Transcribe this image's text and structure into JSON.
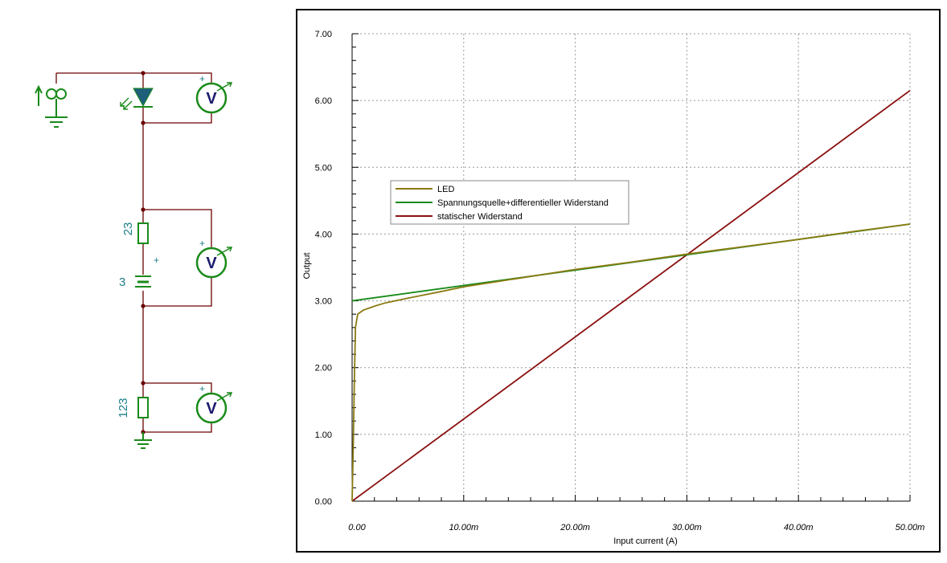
{
  "schematic": {
    "resistor1_value": "23",
    "battery_value": "3",
    "resistor2_value": "123",
    "battery_polarity": "+",
    "voltmeter_letter": "V",
    "voltmeter_polarity": "+",
    "colors": {
      "wire": "#6b0000",
      "component": "#1a8a1a",
      "led": "#1e5f7a",
      "label": "#1e7f8a"
    }
  },
  "chart_data": {
    "type": "line",
    "xlabel": "Input current (A)",
    "ylabel": "Output",
    "xlim": [
      0,
      0.05
    ],
    "ylim": [
      0,
      7
    ],
    "x_ticks": [
      "0.00",
      "10.00m",
      "20.00m",
      "30.00m",
      "40.00m",
      "50.00m"
    ],
    "y_ticks": [
      "0.00",
      "1.00",
      "2.00",
      "3.00",
      "4.00",
      "5.00",
      "6.00",
      "7.00"
    ],
    "grid": true,
    "legend_position": "upper-left",
    "series": [
      {
        "name": "LED",
        "color": "#8a7a10",
        "x": [
          0,
          0.0001,
          0.0002,
          0.0003,
          0.0005,
          0.001,
          0.002,
          0.003,
          0.005,
          0.008,
          0.01,
          0.015,
          0.02,
          0.025,
          0.03,
          0.035,
          0.04,
          0.045,
          0.05
        ],
        "y": [
          0,
          0.8,
          1.8,
          2.6,
          2.8,
          2.86,
          2.92,
          2.97,
          3.04,
          3.14,
          3.21,
          3.34,
          3.47,
          3.58,
          3.7,
          3.81,
          3.92,
          4.04,
          4.15
        ]
      },
      {
        "name": "Spannungsquelle+differentieller Widerstand",
        "color": "#1a8a1a",
        "x": [
          0,
          0.05
        ],
        "y": [
          3.0,
          4.15
        ]
      },
      {
        "name": "statischer Widerstand",
        "color": "#8a1010",
        "x": [
          0,
          0.05
        ],
        "y": [
          0,
          6.15
        ]
      }
    ]
  }
}
